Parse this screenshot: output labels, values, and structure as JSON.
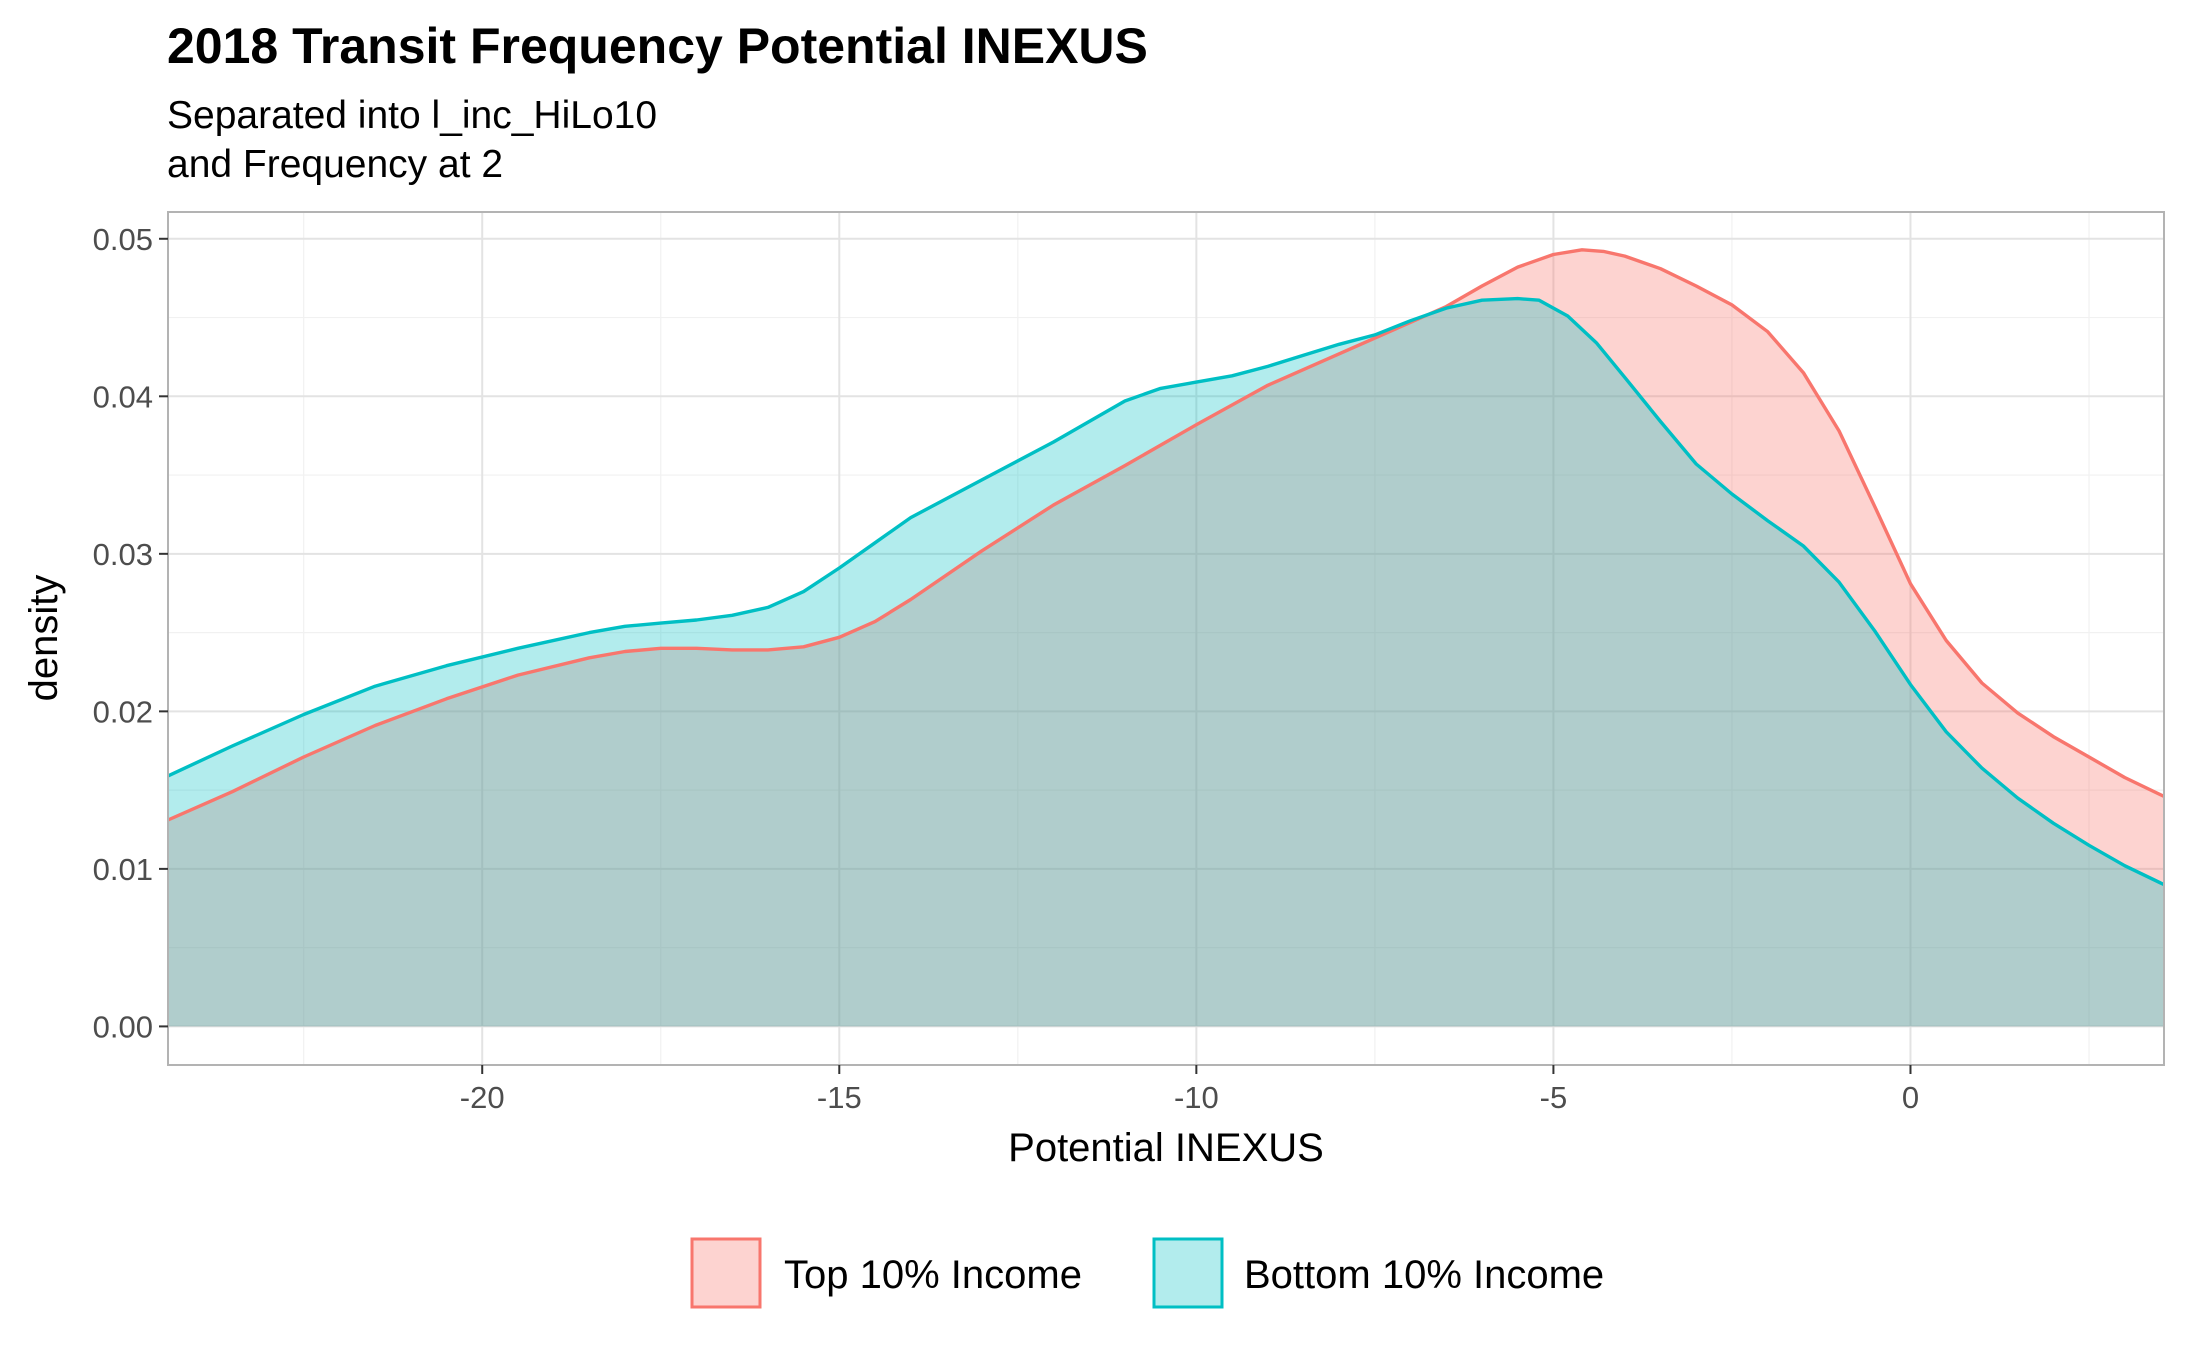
{
  "chart_data": {
    "type": "area",
    "title": "2018 Transit Frequency Potential INEXUS",
    "subtitle_lines": [
      "Separated into l_inc_HiLo10",
      "and Frequency at 2"
    ],
    "xlabel": "Potential INEXUS",
    "ylabel": "density",
    "xlim": [
      -24.4,
      3.55
    ],
    "ylim": [
      -0.00245,
      0.0517
    ],
    "x_ticks": [
      -20,
      -15,
      -10,
      -5,
      0
    ],
    "x_tick_labels": [
      "-20",
      "-15",
      "-10",
      "-5",
      "0"
    ],
    "y_ticks": [
      0,
      0.01,
      0.02,
      0.03,
      0.04,
      0.05
    ],
    "y_tick_labels": [
      "0.00",
      "0.01",
      "0.02",
      "0.03",
      "0.04",
      "0.05"
    ],
    "grid": true,
    "legend_position": "bottom",
    "series": [
      {
        "name": "Top 10% Income",
        "line_color": "#F8766D",
        "fill_color": "#F8766D",
        "fill_opacity": 0.32,
        "x": [
          -24.4,
          -23.5,
          -22.5,
          -21.5,
          -20.5,
          -19.5,
          -18.5,
          -18.0,
          -17.5,
          -17.0,
          -16.5,
          -16.0,
          -15.5,
          -15.0,
          -14.5,
          -14.0,
          -13.0,
          -12.0,
          -11.0,
          -10.0,
          -9.0,
          -8.0,
          -7.0,
          -6.5,
          -6.0,
          -5.5,
          -5.0,
          -4.6,
          -4.3,
          -4.0,
          -3.5,
          -3.0,
          -2.5,
          -2.0,
          -1.5,
          -1.0,
          -0.5,
          0.0,
          0.5,
          1.0,
          1.5,
          2.0,
          2.5,
          3.0,
          3.55
        ],
        "y": [
          0.0131,
          0.0149,
          0.0171,
          0.0191,
          0.0208,
          0.0223,
          0.0234,
          0.0238,
          0.024,
          0.024,
          0.0239,
          0.0239,
          0.0241,
          0.0247,
          0.0257,
          0.0271,
          0.0302,
          0.0331,
          0.0356,
          0.0382,
          0.0407,
          0.0427,
          0.0447,
          0.0457,
          0.047,
          0.0482,
          0.049,
          0.0493,
          0.0492,
          0.0489,
          0.0481,
          0.047,
          0.0458,
          0.0441,
          0.0415,
          0.0378,
          0.033,
          0.0281,
          0.0245,
          0.0218,
          0.0199,
          0.0184,
          0.0171,
          0.0158,
          0.0146
        ]
      },
      {
        "name": "Bottom 10% Income",
        "line_color": "#00BFC4",
        "fill_color": "#00BFC4",
        "fill_opacity": 0.3,
        "x": [
          -24.4,
          -23.5,
          -22.5,
          -21.5,
          -20.5,
          -19.5,
          -18.5,
          -18.0,
          -17.5,
          -17.0,
          -16.5,
          -16.0,
          -15.5,
          -15.0,
          -14.5,
          -14.0,
          -13.0,
          -12.0,
          -11.0,
          -10.5,
          -10.0,
          -9.5,
          -9.0,
          -8.5,
          -8.0,
          -7.5,
          -7.0,
          -6.5,
          -6.0,
          -5.5,
          -5.2,
          -4.8,
          -4.4,
          -4.0,
          -3.5,
          -3.0,
          -2.5,
          -2.0,
          -1.5,
          -1.0,
          -0.5,
          0.0,
          0.5,
          1.0,
          1.5,
          2.0,
          2.5,
          3.0,
          3.55
        ],
        "y": [
          0.0159,
          0.0178,
          0.0198,
          0.0216,
          0.0229,
          0.024,
          0.025,
          0.0254,
          0.0256,
          0.0258,
          0.0261,
          0.0266,
          0.0276,
          0.0291,
          0.0307,
          0.0323,
          0.0347,
          0.0371,
          0.0397,
          0.0405,
          0.0409,
          0.0413,
          0.0419,
          0.0426,
          0.0433,
          0.0439,
          0.0448,
          0.0456,
          0.0461,
          0.0462,
          0.0461,
          0.0451,
          0.0434,
          0.0412,
          0.0384,
          0.0357,
          0.0338,
          0.0321,
          0.0305,
          0.0282,
          0.0251,
          0.0217,
          0.0187,
          0.0164,
          0.0145,
          0.0129,
          0.0115,
          0.0102,
          0.009
        ]
      }
    ]
  }
}
